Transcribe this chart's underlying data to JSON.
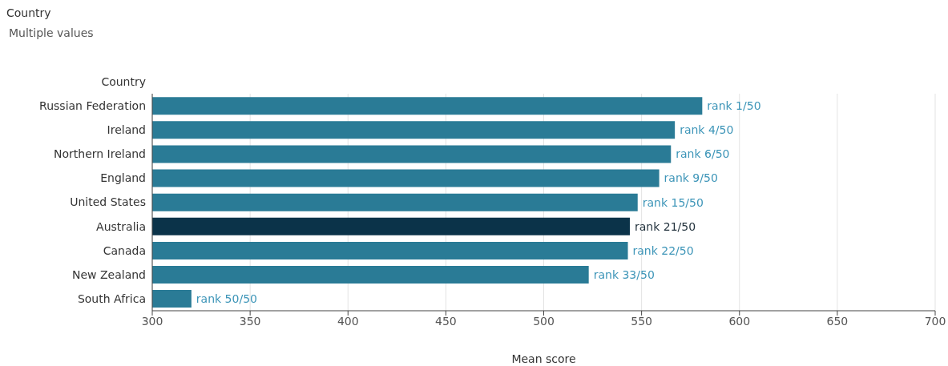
{
  "chart_data": {
    "type": "bar",
    "orientation": "horizontal",
    "ylabel": "Country",
    "xlabel": "Mean score",
    "annotations": [
      "Country",
      "Multiple values"
    ],
    "categories": [
      "Russian Federation",
      "Ireland",
      "Northern Ireland",
      "England",
      "United States",
      "Australia",
      "Canada",
      "New Zealand",
      "South Africa"
    ],
    "values": [
      581,
      567,
      565,
      559,
      548,
      544,
      543,
      523,
      320
    ],
    "colors": [
      "#2a7b96",
      "#2a7b96",
      "#2a7b96",
      "#2a7b96",
      "#2a7b96",
      "#0b3349",
      "#2a7b96",
      "#2a7b96",
      "#2a7b96"
    ],
    "value_labels": [
      "rank 1/50",
      "rank 4/50",
      "rank 6/50",
      "rank 9/50",
      "rank 15/50",
      "rank 21/50",
      "rank 22/50",
      "rank 33/50",
      "rank 50/50"
    ],
    "xlim": [
      300,
      700
    ],
    "xticks": [
      300,
      350,
      400,
      450,
      500,
      550,
      600,
      650,
      700
    ],
    "grid": "x",
    "legend": false
  }
}
